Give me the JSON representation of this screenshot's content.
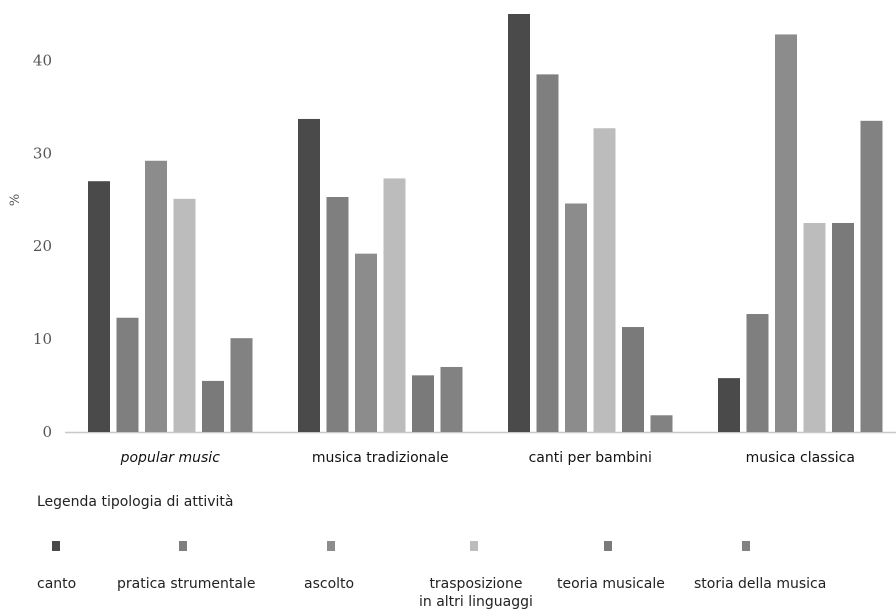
{
  "chart_data": {
    "type": "bar",
    "ylabel": "%",
    "ylim": [
      0,
      45
    ],
    "yticks": [
      0,
      10,
      20,
      30,
      40
    ],
    "categories": [
      "popular music",
      "musica tradizionale",
      "canti per bambini",
      "musica classica"
    ],
    "category_styles": [
      "italic",
      "normal",
      "normal",
      "normal"
    ],
    "series": [
      {
        "name": "canto",
        "color": "#4a4a4a",
        "values": [
          27,
          33.7,
          45,
          5.8
        ]
      },
      {
        "name": "pratica strumentale",
        "color": "#7f7f7f",
        "values": [
          12.3,
          25.3,
          38.5,
          12.7
        ]
      },
      {
        "name": "ascolto",
        "color": "#8c8c8c",
        "values": [
          29.2,
          19.2,
          24.6,
          42.8
        ]
      },
      {
        "name": "trasposizione in altri linguaggi",
        "color": "#bcbcbc",
        "values": [
          25.1,
          27.3,
          32.7,
          22.5
        ]
      },
      {
        "name": "teoria musicale",
        "color": "#7a7a7a",
        "values": [
          5.5,
          6.1,
          11.3,
          22.5
        ]
      },
      {
        "name": "storia della musica",
        "color": "#828282",
        "values": [
          10.1,
          7,
          1.8,
          33.5
        ]
      }
    ]
  },
  "legend": {
    "title": "Legenda tipologia di attività",
    "labels": [
      "canto",
      "pratica strumentale",
      "ascolto",
      "trasposizione\nin altri linguaggi",
      "teoria musicale",
      "storia della musica"
    ]
  }
}
